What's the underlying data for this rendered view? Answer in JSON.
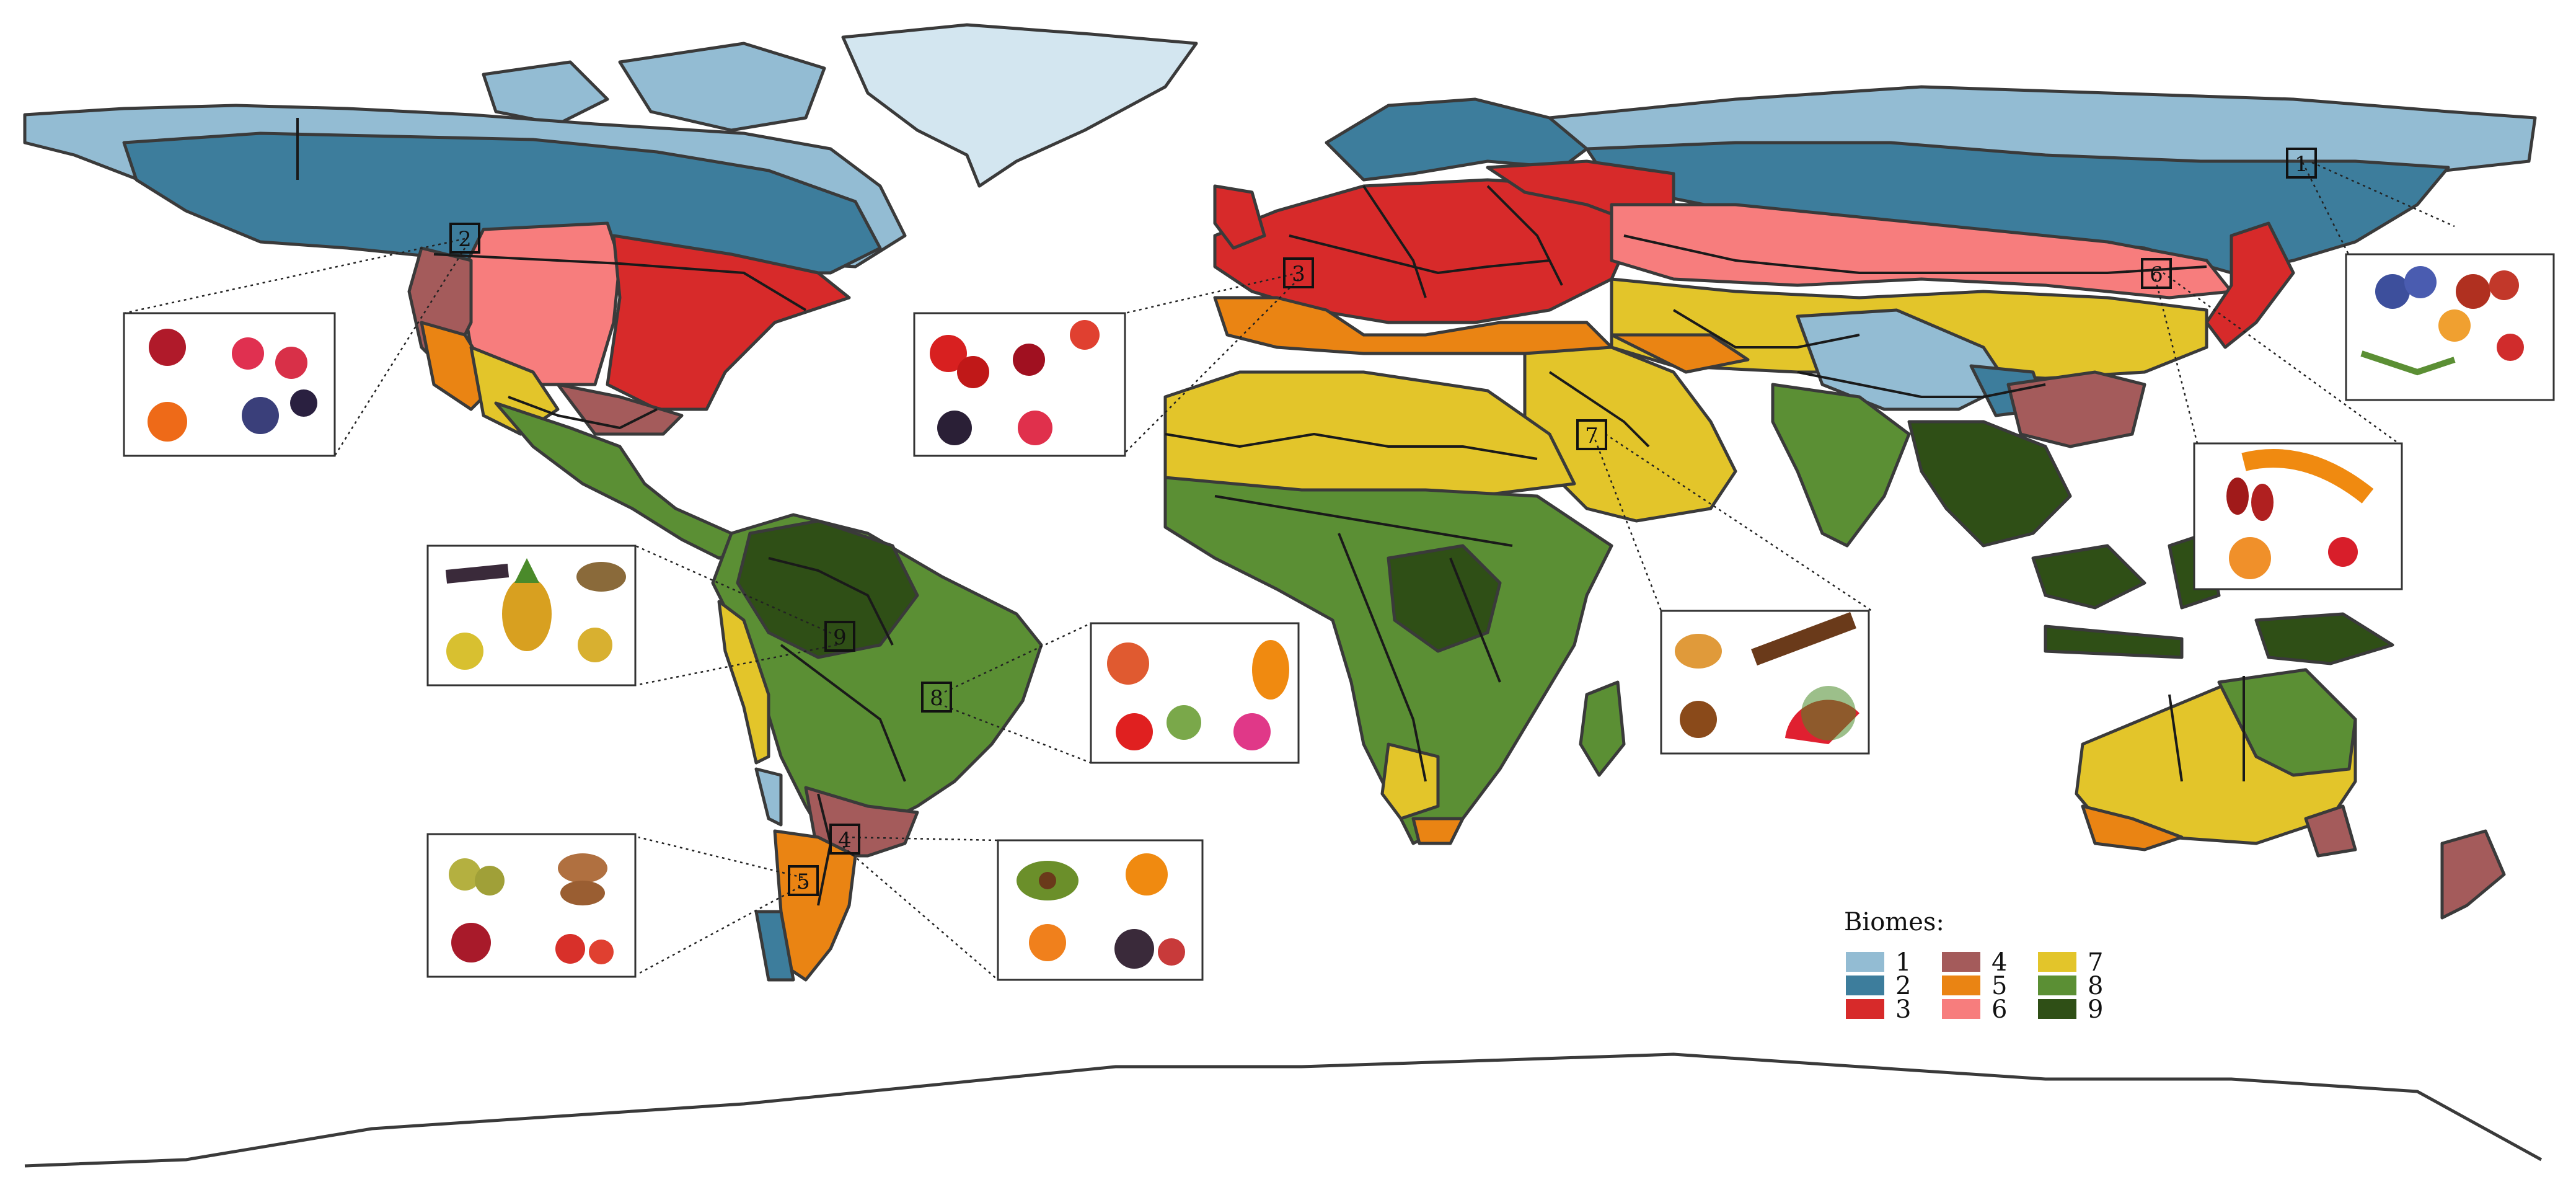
{
  "legend": {
    "title": "Biomes:",
    "items": [
      {
        "id": "1",
        "color": "#93bcd3"
      },
      {
        "id": "2",
        "color": "#3d7d9c"
      },
      {
        "id": "3",
        "color": "#d72a2a"
      },
      {
        "id": "4",
        "color": "#a45b5b"
      },
      {
        "id": "5",
        "color": "#ea8413"
      },
      {
        "id": "6",
        "color": "#f77d7d"
      },
      {
        "id": "7",
        "color": "#e3c52a"
      },
      {
        "id": "8",
        "color": "#5b8f34"
      },
      {
        "id": "9",
        "color": "#2f4f16"
      }
    ]
  },
  "region_labels": [
    "1",
    "2",
    "3",
    "4",
    "5",
    "6",
    "7",
    "8",
    "9"
  ],
  "insets": [
    {
      "biome": "1",
      "fruits": [
        "blueberry",
        "lingonberry",
        "cloudberry",
        "cranberry"
      ]
    },
    {
      "biome": "2",
      "fruits": [
        "cranberry",
        "raspberry",
        "rowan",
        "blueberry",
        "blackberry"
      ]
    },
    {
      "biome": "3",
      "fruits": [
        "strawberry",
        "cherry",
        "rosehip",
        "blackberry",
        "raspberry"
      ]
    },
    {
      "biome": "4",
      "fruits": [
        "avocado",
        "orange",
        "kumquat",
        "fig"
      ]
    },
    {
      "biome": "5",
      "fruits": [
        "olive",
        "almond",
        "pomegranate",
        "arbutus"
      ]
    },
    {
      "biome": "6",
      "fruits": [
        "sea-buckthorn",
        "jujube",
        "apricot",
        "schisandra"
      ]
    },
    {
      "biome": "7",
      "fruits": [
        "prickly-pear",
        "date",
        "watermelon",
        "jujube"
      ]
    },
    {
      "biome": "8",
      "fruits": [
        "mango",
        "papaya",
        "cashew-apple",
        "guava",
        "dragon-fruit"
      ]
    },
    {
      "biome": "9",
      "fruits": [
        "acai",
        "pineapple",
        "passion-fruit",
        "brazil-nut"
      ]
    }
  ]
}
